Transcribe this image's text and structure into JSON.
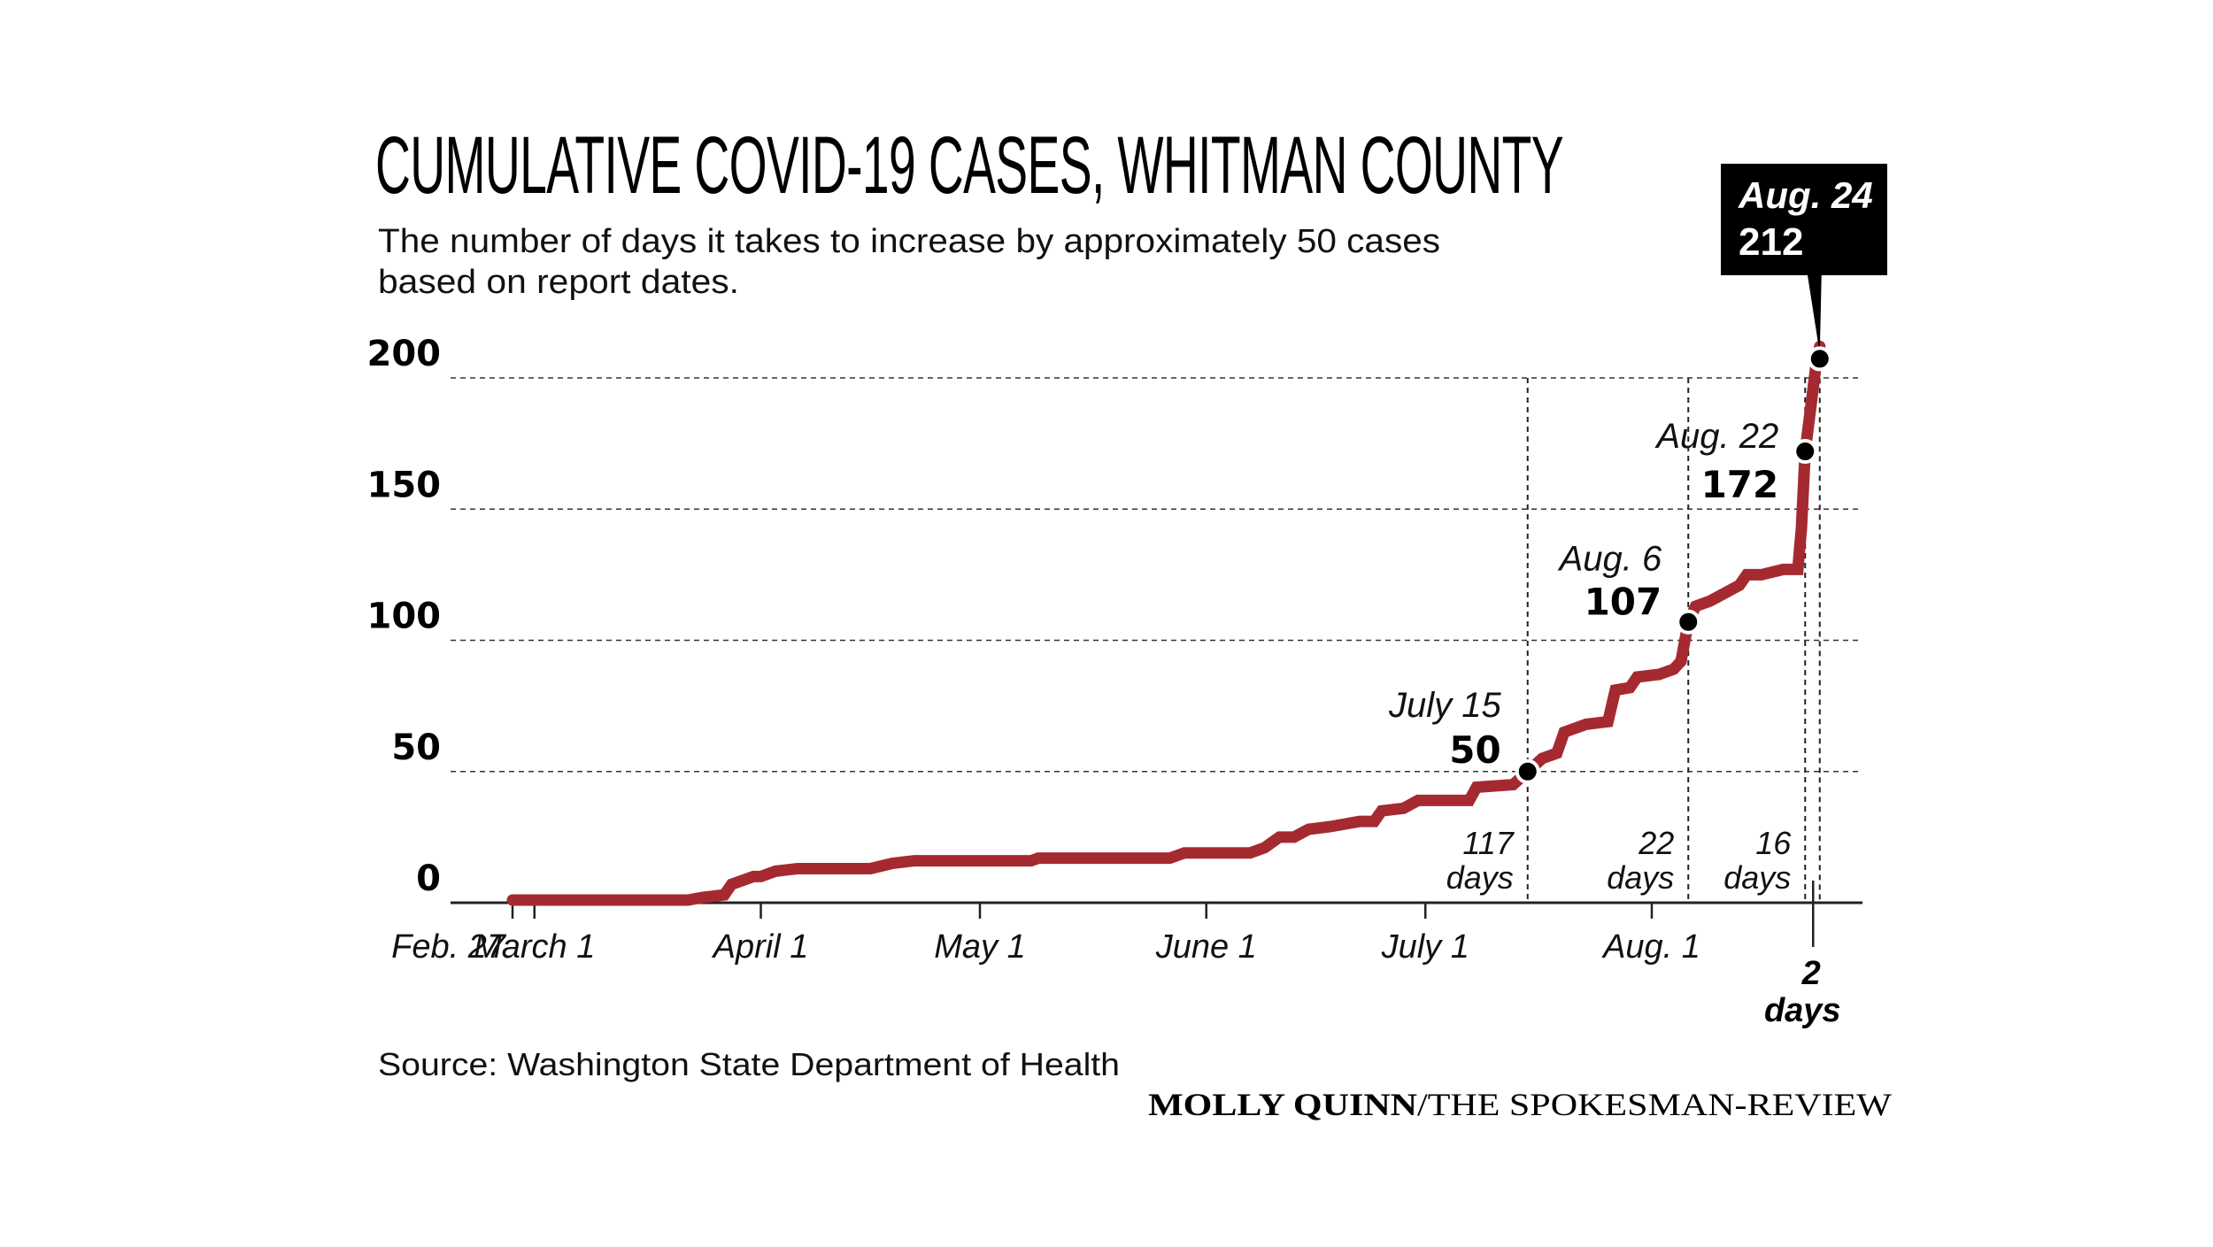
{
  "chart_data": {
    "type": "line",
    "title": "CUMULATIVE COVID-19 CASES, WHITMAN COUNTY",
    "subtitle_lines": [
      "The number of days it takes to increase by approximately 50 cases",
      "based on report dates."
    ],
    "xlabel": "",
    "ylabel": "",
    "x_units": "days since Feb. 27",
    "xlim": [
      0,
      187
    ],
    "ylim": [
      0,
      212
    ],
    "grid": true,
    "yticks": [
      {
        "value": 0,
        "label": "0"
      },
      {
        "value": 50,
        "label": "50"
      },
      {
        "value": 100,
        "label": "100"
      },
      {
        "value": 150,
        "label": "150"
      },
      {
        "value": 200,
        "label": "200"
      }
    ],
    "xticks": [
      {
        "day": 0,
        "label": "Feb. 27"
      },
      {
        "day": 3,
        "label": "March 1"
      },
      {
        "day": 34,
        "label": "April 1"
      },
      {
        "day": 64,
        "label": "May 1"
      },
      {
        "day": 95,
        "label": "June 1"
      },
      {
        "day": 125,
        "label": "July 1"
      },
      {
        "day": 156,
        "label": "Aug. 1"
      }
    ],
    "series": [
      {
        "name": "Cumulative cases",
        "color": "#a52a30",
        "points": [
          [
            0,
            1
          ],
          [
            24,
            1
          ],
          [
            26,
            2
          ],
          [
            29,
            3
          ],
          [
            30,
            7
          ],
          [
            33,
            10
          ],
          [
            34,
            10
          ],
          [
            36,
            12
          ],
          [
            39,
            13
          ],
          [
            49,
            13
          ],
          [
            52,
            15
          ],
          [
            55,
            16
          ],
          [
            71,
            16
          ],
          [
            72,
            17
          ],
          [
            90,
            17
          ],
          [
            92,
            19
          ],
          [
            101,
            19
          ],
          [
            103,
            21
          ],
          [
            105,
            25
          ],
          [
            107,
            25
          ],
          [
            109,
            28
          ],
          [
            112,
            29
          ],
          [
            116,
            31
          ],
          [
            118,
            31
          ],
          [
            119,
            35
          ],
          [
            122,
            36
          ],
          [
            124,
            39
          ],
          [
            131,
            39
          ],
          [
            132,
            44
          ],
          [
            137,
            45
          ],
          [
            139,
            50
          ],
          [
            141,
            55
          ],
          [
            143,
            57
          ],
          [
            144,
            65
          ],
          [
            147,
            68
          ],
          [
            150,
            69
          ],
          [
            151,
            81
          ],
          [
            153,
            82
          ],
          [
            154,
            86
          ],
          [
            157,
            87
          ],
          [
            159,
            89
          ],
          [
            160,
            92
          ],
          [
            161,
            107
          ],
          [
            162,
            113
          ],
          [
            164,
            115
          ],
          [
            166,
            118
          ],
          [
            168,
            121
          ],
          [
            169,
            125
          ],
          [
            171,
            125
          ],
          [
            174,
            127
          ],
          [
            176,
            127
          ],
          [
            176.5,
            143
          ],
          [
            177,
            172
          ],
          [
            177.5,
            183
          ],
          [
            178.5,
            205
          ],
          [
            179,
            212
          ]
        ]
      }
    ],
    "annotations": [
      {
        "date": "July 15",
        "day": 139,
        "value": 50,
        "label": "50"
      },
      {
        "date": "Aug. 6",
        "day": 161,
        "value": 107,
        "label": "107"
      },
      {
        "date": "Aug. 22",
        "day": 177,
        "value": 172,
        "label": "172"
      },
      {
        "date": "Aug. 24",
        "day": 179,
        "value": 212,
        "label": "212",
        "highlight": true
      }
    ],
    "intervals": [
      {
        "days": 117,
        "number": "117",
        "unit": "days",
        "from": "Feb. 27",
        "to": "July 15"
      },
      {
        "days": 22,
        "number": "22",
        "unit": "days",
        "from": "July 15",
        "to": "Aug. 6"
      },
      {
        "days": 16,
        "number": "16",
        "unit": "days",
        "from": "Aug. 6",
        "to": "Aug. 22"
      },
      {
        "days": 2,
        "number": "2",
        "unit": "days",
        "from": "Aug. 22",
        "to": "Aug. 24"
      }
    ],
    "legend": "none"
  },
  "footer": {
    "source": "Source: Washington State Department of Health",
    "credit_name": "MOLLY QUINN",
    "credit_outlet": "/THE SPOKESMAN-REVIEW"
  }
}
